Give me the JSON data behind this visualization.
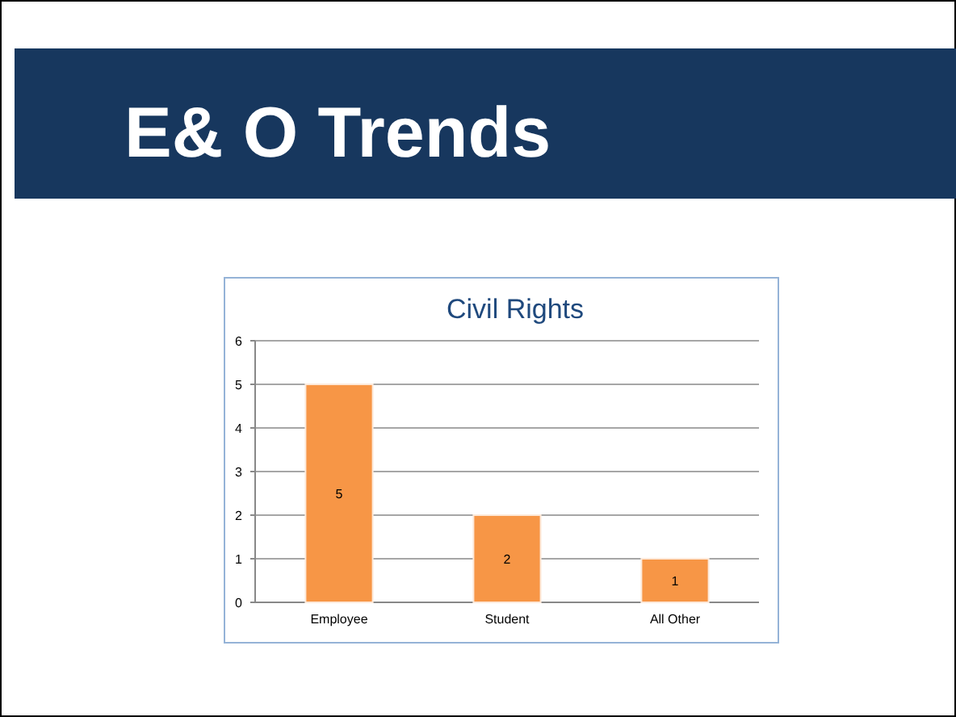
{
  "chart_data": {
    "type": "bar",
    "title": "E& O Trends",
    "subtitle": "Civil Rights",
    "categories": [
      "Employee",
      "Student",
      "All Other"
    ],
    "values": [
      5,
      2,
      1
    ],
    "color": "#f79646",
    "ylim": [
      0,
      6
    ],
    "yticks": [
      0,
      1,
      2,
      3,
      4,
      5,
      6
    ],
    "grid": "y",
    "data_labels": true
  }
}
